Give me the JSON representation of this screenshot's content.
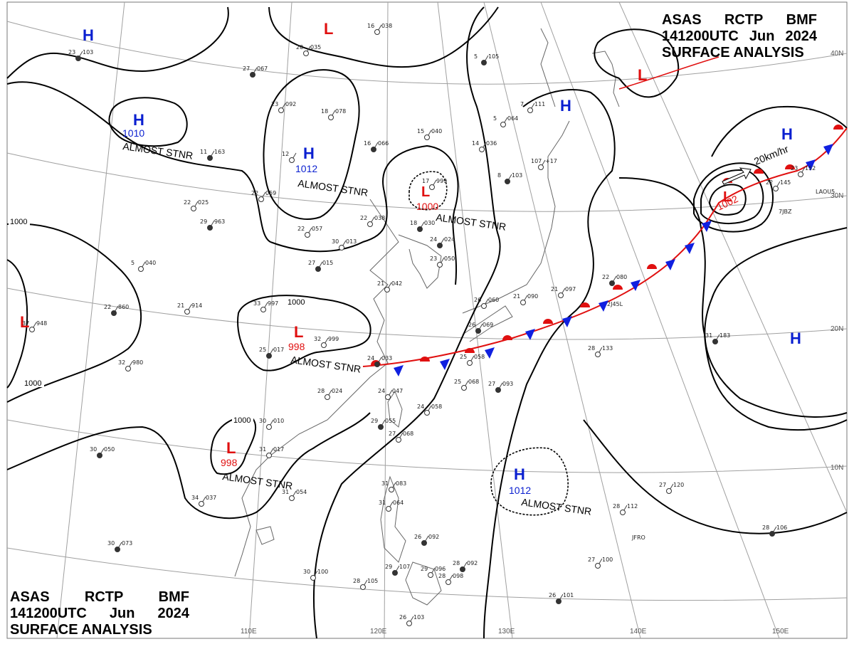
{
  "header": {
    "line1_words": [
      "ASAS",
      "RCTP",
      "BMF"
    ],
    "line2_words": [
      "141200UTC",
      "Jun",
      "2024"
    ],
    "line3": "SURFACE ANALYSIS"
  },
  "colors": {
    "high": "#0a1fd0",
    "low": "#e01010",
    "warm_front": "#e01010",
    "cold_front": "#1020e0",
    "isobar": "#000000",
    "graticule": "#9a9a9a",
    "coast": "#555555"
  },
  "lon_labels": [
    "110E",
    "120E",
    "130E",
    "140E",
    "150E"
  ],
  "lat_labels": [
    "40N",
    "30N",
    "20N",
    "10N"
  ],
  "isobar_labels": [
    "1000",
    "1000",
    "1000",
    "1000"
  ],
  "pressure_centers": [
    {
      "type": "H",
      "value": "",
      "note": ""
    },
    {
      "type": "H",
      "value": "1010",
      "note": "ALMOST STNR"
    },
    {
      "type": "H",
      "value": "1012",
      "note": "ALMOST STNR"
    },
    {
      "type": "L",
      "value": "",
      "note": ""
    },
    {
      "type": "L",
      "value": "1000",
      "note": "ALMOST STNR"
    },
    {
      "type": "H",
      "value": "",
      "note": ""
    },
    {
      "type": "L",
      "value": "",
      "note": ""
    },
    {
      "type": "H",
      "value": "",
      "note": ""
    },
    {
      "type": "L",
      "value": "1002",
      "note": ""
    },
    {
      "type": "L",
      "value": "",
      "note": ""
    },
    {
      "type": "L",
      "value": "998",
      "note": "ALMOST STNR"
    },
    {
      "type": "L",
      "value": "998",
      "note": "ALMOST STNR"
    },
    {
      "type": "H",
      "value": "1012",
      "note": "ALMOST STNR"
    },
    {
      "type": "H",
      "value": "",
      "note": ""
    }
  ],
  "storm_motion": "20km/hr",
  "stations": [
    [
      "23",
      "103"
    ],
    [
      "20",
      "035"
    ],
    [
      "16",
      "038"
    ],
    [
      "27",
      "067"
    ],
    [
      "23",
      "092"
    ],
    [
      "18",
      "078"
    ],
    [
      "11",
      "163"
    ],
    [
      "22",
      "059"
    ],
    [
      "12",
      ""
    ],
    [
      "16",
      "066"
    ],
    [
      "15",
      "040"
    ],
    [
      "14",
      "036"
    ],
    [
      "5",
      "105"
    ],
    [
      "5",
      "064"
    ],
    [
      "7",
      "111"
    ],
    [
      "8",
      "103"
    ],
    [
      "107",
      "+17"
    ],
    [
      "22",
      "038"
    ],
    [
      "18",
      "030"
    ],
    [
      "22",
      "057"
    ],
    [
      "30",
      "013"
    ],
    [
      "29",
      "963"
    ],
    [
      "22",
      "025"
    ],
    [
      "17",
      "999"
    ],
    [
      "24",
      "024"
    ],
    [
      "23",
      "050"
    ],
    [
      "5",
      "040"
    ],
    [
      "27",
      "015"
    ],
    [
      "21",
      "042"
    ],
    [
      "21",
      "914"
    ],
    [
      "22",
      "860"
    ],
    [
      "37",
      "948"
    ],
    [
      "33",
      "997"
    ],
    [
      "25",
      "017"
    ],
    [
      "32",
      "999"
    ],
    [
      "32",
      "980"
    ],
    [
      "24",
      "033"
    ],
    [
      "25",
      "058"
    ],
    [
      "26",
      "060"
    ],
    [
      "26",
      "069"
    ],
    [
      "21",
      "090"
    ],
    [
      "21",
      "097"
    ],
    [
      "22",
      "080"
    ],
    [
      "24",
      "047"
    ],
    [
      "25",
      "068"
    ],
    [
      "27",
      "093"
    ],
    [
      "28",
      "024"
    ],
    [
      "24",
      "058"
    ],
    [
      "29",
      "055"
    ],
    [
      "27",
      "068"
    ],
    [
      "28",
      "133"
    ],
    [
      "31",
      "183"
    ],
    [
      "22",
      "145"
    ],
    [
      "23",
      "152"
    ],
    [
      "30",
      "050"
    ],
    [
      "34",
      "037"
    ],
    [
      "31",
      "054"
    ],
    [
      "30",
      "073"
    ],
    [
      "30",
      "100"
    ],
    [
      "28",
      "105"
    ],
    [
      "29",
      "107"
    ],
    [
      "29",
      "096"
    ],
    [
      "28",
      "098"
    ],
    [
      "28",
      "092"
    ],
    [
      "31",
      "083"
    ],
    [
      "31",
      "064"
    ],
    [
      "26",
      "092"
    ],
    [
      "26",
      "103"
    ],
    [
      "27",
      "100"
    ],
    [
      "26",
      "101"
    ],
    [
      "28",
      "112"
    ],
    [
      "27",
      "120"
    ],
    [
      "28",
      "106"
    ],
    [
      "31",
      "017"
    ],
    [
      "30",
      "010"
    ]
  ],
  "station_ids": [
    "2J45L",
    "7JBZ",
    "LAOU5",
    "JFRO"
  ]
}
